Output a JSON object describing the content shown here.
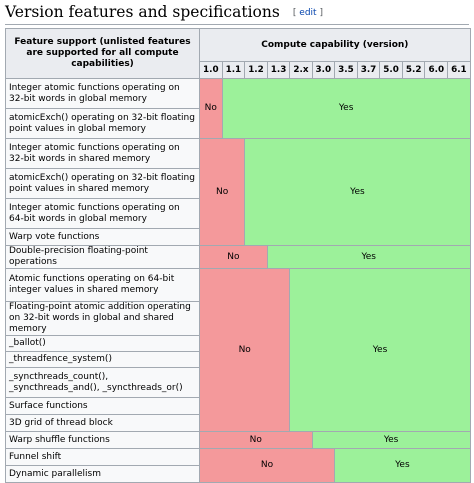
{
  "section": {
    "title": "Version features and specifications",
    "edit_open": "[",
    "edit_label": "edit",
    "edit_close": "]"
  },
  "table": {
    "feature_header": "Feature support (unlisted features are supported for all compute capabilities)",
    "capability_header": "Compute capability (version)",
    "versions": [
      "1.0",
      "1.1",
      "1.2",
      "1.3",
      "2.x",
      "3.0",
      "3.5",
      "3.7",
      "5.0",
      "5.2",
      "6.0",
      "6.1"
    ],
    "no_label": "No",
    "yes_label": "Yes",
    "rows": [
      "Integer atomic functions operating on 32-bit words in global memory",
      "atomicExch() operating on 32-bit floating point values in global memory",
      "Integer atomic functions operating on 32-bit words in shared memory",
      "atomicExch() operating on 32-bit floating point values in shared memory",
      "Integer atomic functions operating on 64-bit words in global memory",
      "Warp vote functions",
      "Double-precision floating-point operations",
      "Atomic functions operating on 64-bit integer values in shared memory",
      "Floating-point atomic addition operating on 32-bit words in global and shared memory",
      "_ballot()",
      "_threadfence_system()",
      "_syncthreads_count(), _syncthreads_and(), _syncthreads_or()",
      "Surface functions",
      "3D grid of thread block",
      "Warp shuffle functions",
      "Funnel shift",
      "Dynamic parallelism"
    ]
  },
  "colors": {
    "no": "#f4999b",
    "yes": "#9cf19a",
    "header": "#eaecf0",
    "link": "#0645ad"
  }
}
